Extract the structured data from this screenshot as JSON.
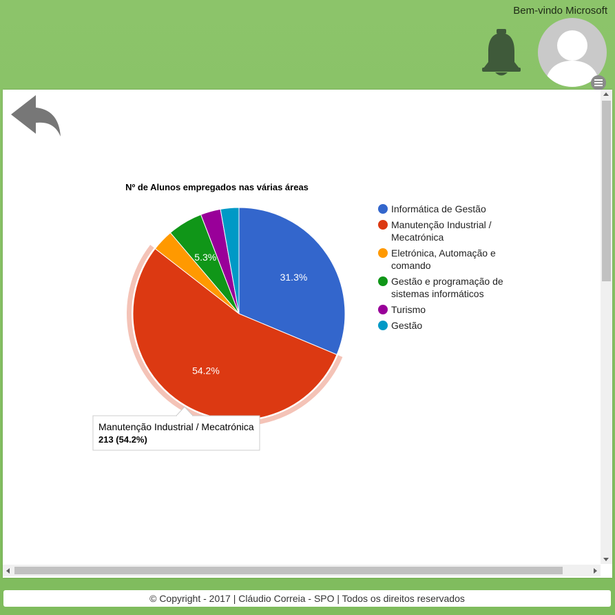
{
  "header": {
    "welcome_text": "Bem-vindo Microsoft",
    "icons": {
      "notifications": "bell-icon",
      "user": "user-avatar-icon",
      "menu": "hamburger-menu-icon"
    }
  },
  "toolbar": {
    "back_icon": "back-arrow-icon"
  },
  "colors": {
    "background": "#8cc46a",
    "series": [
      "#3366cc",
      "#dc3912",
      "#ff9900",
      "#109618",
      "#990099",
      "#0099c6"
    ]
  },
  "chart_data": {
    "type": "pie",
    "title": "Nº de Alunos empregados nas várias áreas",
    "legend_position": "right",
    "slices": [
      {
        "label": "Informática de Gestão",
        "value": 123,
        "percent_label": "31.3%"
      },
      {
        "label": "Manutenção Industrial / Mecatrónica",
        "value": 213,
        "percent_label": "54.2%"
      },
      {
        "label": "Eletrónica, Automação e comando",
        "value": 13,
        "percent_label": ""
      },
      {
        "label": "Gestão e programação de sistemas informáticos",
        "value": 21,
        "percent_label": "5.3%"
      },
      {
        "label": "Turismo",
        "value": 12,
        "percent_label": ""
      },
      {
        "label": "Gestão",
        "value": 11,
        "percent_label": ""
      }
    ],
    "legend_lines": [
      [
        "Informática de Gestão"
      ],
      [
        "Manutenção Industrial /",
        "Mecatrónica"
      ],
      [
        "Eletrónica, Automação e",
        "comando"
      ],
      [
        "Gestão e programação de",
        "sistemas informáticos"
      ],
      [
        "Turismo"
      ],
      [
        "Gestão"
      ]
    ],
    "highlighted_slice": 1,
    "tooltip": {
      "label": "Manutenção Industrial / Mecatrónica",
      "value": "213 (54.2%)"
    }
  },
  "footer": {
    "text": "© Copyright - 2017 | Cláudio Correia - SPO | Todos os direitos reservados"
  }
}
